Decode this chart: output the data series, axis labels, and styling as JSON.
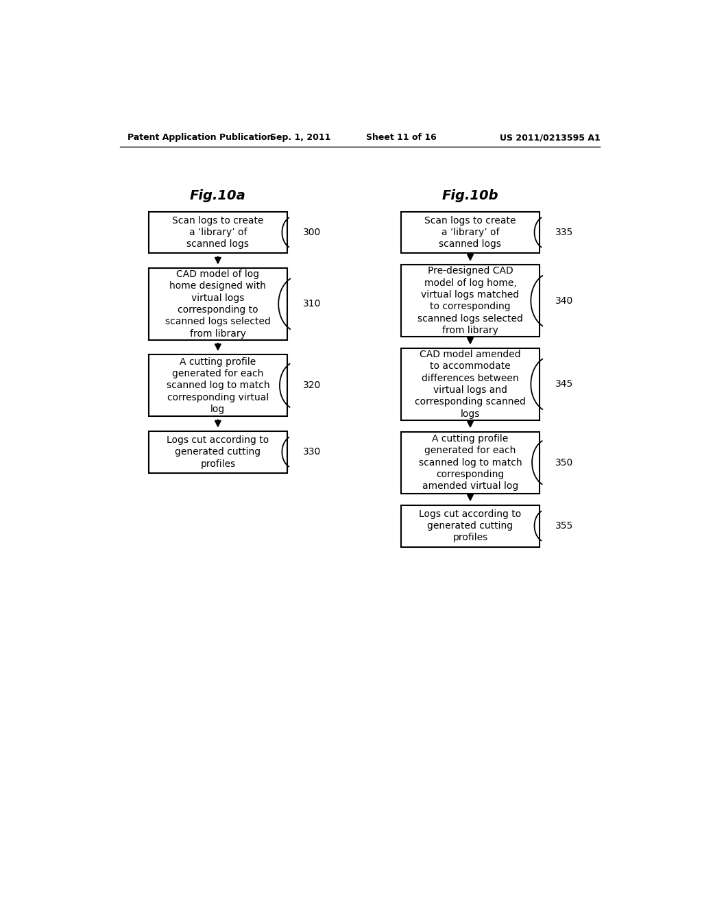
{
  "bg_color": "#ffffff",
  "header_text": "Patent Application Publication",
  "header_date": "Sep. 1, 2011",
  "header_sheet": "Sheet 11 of 16",
  "header_patent": "US 2011/0213595 A1",
  "fig_a_title": "Fig.10a",
  "fig_b_title": "Fig.10b",
  "boxes_a": [
    {
      "label": "Scan logs to create\na ‘library’ of\nscanned logs",
      "ref": "300"
    },
    {
      "label": "CAD model of log\nhome designed with\nvirtual logs\ncorresponding to\nscanned logs selected\nfrom library",
      "ref": "310"
    },
    {
      "label": "A cutting profile\ngenerated for each\nscanned log to match\ncorresponding virtual\nlog",
      "ref": "320"
    },
    {
      "label": "Logs cut according to\ngenerated cutting\nprofiles",
      "ref": "330"
    }
  ],
  "boxes_b": [
    {
      "label": "Scan logs to create\na ‘library’ of\nscanned logs",
      "ref": "335"
    },
    {
      "label": "Pre-designed CAD\nmodel of log home,\nvirtual logs matched\nto corresponding\nscanned logs selected\nfrom library",
      "ref": "340"
    },
    {
      "label": "CAD model amended\nto accommodate\ndifferences between\nvirtual logs and\ncorresponding scanned\nlogs",
      "ref": "345"
    },
    {
      "label": "A cutting profile\ngenerated for each\nscanned log to match\ncorresponding\namended virtual log",
      "ref": "350"
    },
    {
      "label": "Logs cut according to\ngenerated cutting\nprofiles",
      "ref": "355"
    }
  ],
  "box_color": "#ffffff",
  "box_edge_color": "#000000",
  "text_color": "#000000",
  "arrow_color": "#000000",
  "font_size_box": 10,
  "font_size_title": 14,
  "font_size_header": 9,
  "font_size_ref": 10
}
